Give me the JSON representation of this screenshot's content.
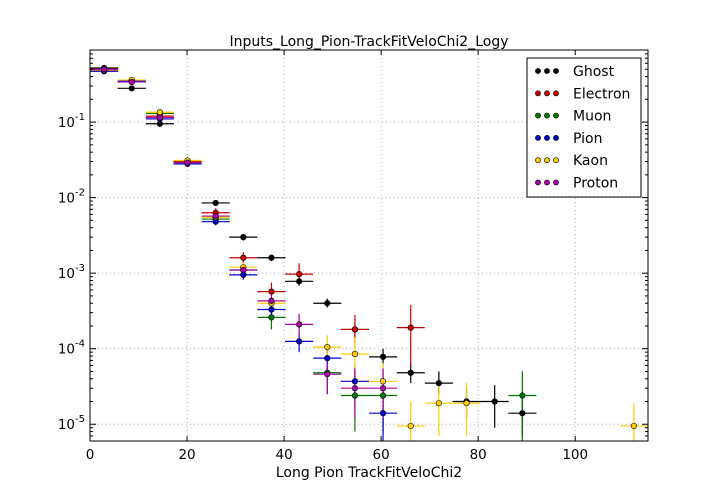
{
  "chart_data": {
    "type": "scatter",
    "title": "Inputs_Long_Pion-TrackFitVeloChi2_Logy",
    "xlabel": "Long Pion TrackFitVeloChi2",
    "ylabel": "",
    "xscale": "linear",
    "yscale": "log",
    "xlim": [
      0,
      115
    ],
    "ylim": [
      6e-06,
      0.9
    ],
    "grid": true,
    "legend_position": "top-right",
    "x_ticks": [
      0,
      20,
      40,
      60,
      80,
      100
    ],
    "x_tick_labels": [
      "0",
      "20",
      "40",
      "60",
      "80",
      "100"
    ],
    "y_ticks": [
      1e-05,
      0.0001,
      0.001,
      0.01,
      0.1
    ],
    "y_tick_labels": [
      {
        "base": "10",
        "exp": "-5"
      },
      {
        "base": "10",
        "exp": "-4"
      },
      {
        "base": "10",
        "exp": "-3"
      },
      {
        "base": "10",
        "exp": "-2"
      },
      {
        "base": "10",
        "exp": "-1"
      }
    ],
    "bin_half_width": 2.9,
    "series": [
      {
        "name": "Ghost",
        "color": "#000000",
        "points": [
          {
            "x": 2.9,
            "y": 0.52,
            "lo": 0.47,
            "hi": 0.57
          },
          {
            "x": 8.6,
            "y": 0.28,
            "lo": 0.26,
            "hi": 0.3
          },
          {
            "x": 14.4,
            "y": 0.095,
            "lo": 0.088,
            "hi": 0.102
          },
          {
            "x": 20.1,
            "y": 0.03,
            "lo": 0.028,
            "hi": 0.032
          },
          {
            "x": 25.9,
            "y": 0.0085,
            "lo": 0.0078,
            "hi": 0.0093
          },
          {
            "x": 31.6,
            "y": 0.003,
            "lo": 0.0027,
            "hi": 0.0033
          },
          {
            "x": 37.4,
            "y": 0.0016,
            "lo": 0.00145,
            "hi": 0.00175
          },
          {
            "x": 43.1,
            "y": 0.00078,
            "lo": 0.00068,
            "hi": 0.0009
          },
          {
            "x": 48.9,
            "y": 0.0004,
            "lo": 0.00035,
            "hi": 0.00046
          },
          {
            "x": 54.6,
            "y": 0.00018,
            "lo": 0.00015,
            "hi": 0.00022
          },
          {
            "x": 60.4,
            "y": 7.8e-05,
            "lo": 6e-05,
            "hi": 0.0001
          },
          {
            "x": 66.1,
            "y": 4.8e-05,
            "lo": 3.5e-05,
            "hi": 6.5e-05
          },
          {
            "x": 71.9,
            "y": 3.5e-05,
            "lo": 2.5e-05,
            "hi": 5e-05
          },
          {
            "x": 77.6,
            "y": 2e-05,
            "lo": 1.2e-05,
            "hi": 3e-05
          },
          {
            "x": 83.4,
            "y": 2e-05,
            "lo": 9e-06,
            "hi": 3.3e-05
          },
          {
            "x": 89.1,
            "y": 1.4e-05,
            "lo": 7e-06,
            "hi": 2.2e-05
          }
        ]
      },
      {
        "name": "Electron",
        "color": "#cc0000",
        "points": [
          {
            "x": 2.9,
            "y": 0.48,
            "lo": 0.45,
            "hi": 0.51
          },
          {
            "x": 8.6,
            "y": 0.34,
            "lo": 0.32,
            "hi": 0.36
          },
          {
            "x": 14.4,
            "y": 0.12,
            "lo": 0.11,
            "hi": 0.13
          },
          {
            "x": 20.1,
            "y": 0.03,
            "lo": 0.028,
            "hi": 0.032
          },
          {
            "x": 25.9,
            "y": 0.0063,
            "lo": 0.0055,
            "hi": 0.0072
          },
          {
            "x": 31.6,
            "y": 0.0016,
            "lo": 0.0013,
            "hi": 0.0019
          },
          {
            "x": 37.4,
            "y": 0.00057,
            "lo": 0.00042,
            "hi": 0.00075
          },
          {
            "x": 43.1,
            "y": 0.00097,
            "lo": 0.00072,
            "hi": 0.00135
          },
          {
            "x": 54.6,
            "y": 0.00018,
            "lo": 0.0001,
            "hi": 0.00028
          },
          {
            "x": 66.1,
            "y": 0.00019,
            "lo": 6e-05,
            "hi": 0.00038
          }
        ]
      },
      {
        "name": "Muon",
        "color": "#007700",
        "points": [
          {
            "x": 2.9,
            "y": 0.5,
            "lo": 0.46,
            "hi": 0.54
          },
          {
            "x": 8.6,
            "y": 0.35,
            "lo": 0.33,
            "hi": 0.37
          },
          {
            "x": 14.4,
            "y": 0.13,
            "lo": 0.12,
            "hi": 0.14
          },
          {
            "x": 20.1,
            "y": 0.029,
            "lo": 0.027,
            "hi": 0.031
          },
          {
            "x": 25.9,
            "y": 0.0052,
            "lo": 0.0046,
            "hi": 0.0058
          },
          {
            "x": 31.6,
            "y": 0.0011,
            "lo": 0.0009,
            "hi": 0.0013
          },
          {
            "x": 37.4,
            "y": 0.00026,
            "lo": 0.00018,
            "hi": 0.00036
          },
          {
            "x": 48.9,
            "y": 4.8e-05,
            "lo": 2.5e-05,
            "hi": 8e-05
          },
          {
            "x": 54.6,
            "y": 2.4e-05,
            "lo": 8e-06,
            "hi": 5e-05
          },
          {
            "x": 60.4,
            "y": 2.4e-05,
            "lo": 8e-06,
            "hi": 5e-05
          },
          {
            "x": 89.1,
            "y": 2.4e-05,
            "lo": 6e-06,
            "hi": 5e-05
          }
        ]
      },
      {
        "name": "Pion",
        "color": "#0000cc",
        "points": [
          {
            "x": 2.9,
            "y": 0.47,
            "lo": 0.44,
            "hi": 0.5
          },
          {
            "x": 8.6,
            "y": 0.35,
            "lo": 0.33,
            "hi": 0.37
          },
          {
            "x": 14.4,
            "y": 0.11,
            "lo": 0.102,
            "hi": 0.118
          },
          {
            "x": 20.1,
            "y": 0.028,
            "lo": 0.026,
            "hi": 0.03
          },
          {
            "x": 25.9,
            "y": 0.0048,
            "lo": 0.0043,
            "hi": 0.0054
          },
          {
            "x": 31.6,
            "y": 0.00095,
            "lo": 0.00082,
            "hi": 0.0011
          },
          {
            "x": 37.4,
            "y": 0.00033,
            "lo": 0.00026,
            "hi": 0.00042
          },
          {
            "x": 43.1,
            "y": 0.000125,
            "lo": 9e-05,
            "hi": 0.00016
          },
          {
            "x": 48.9,
            "y": 7.5e-05,
            "lo": 5e-05,
            "hi": 0.000105
          },
          {
            "x": 54.6,
            "y": 3.7e-05,
            "lo": 2e-05,
            "hi": 6e-05
          },
          {
            "x": 60.4,
            "y": 1.4e-05,
            "lo": 6e-06,
            "hi": 2.8e-05
          }
        ]
      },
      {
        "name": "Kaon",
        "color": "#ffcc00",
        "points": [
          {
            "x": 2.9,
            "y": 0.49,
            "lo": 0.46,
            "hi": 0.52
          },
          {
            "x": 8.6,
            "y": 0.36,
            "lo": 0.34,
            "hi": 0.38
          },
          {
            "x": 14.4,
            "y": 0.135,
            "lo": 0.125,
            "hi": 0.145
          },
          {
            "x": 20.1,
            "y": 0.031,
            "lo": 0.029,
            "hi": 0.033
          },
          {
            "x": 25.9,
            "y": 0.0055,
            "lo": 0.0049,
            "hi": 0.0062
          },
          {
            "x": 31.6,
            "y": 0.0012,
            "lo": 0.001,
            "hi": 0.0014
          },
          {
            "x": 37.4,
            "y": 0.0004,
            "lo": 0.00031,
            "hi": 0.0005
          },
          {
            "x": 48.9,
            "y": 0.000105,
            "lo": 7e-05,
            "hi": 0.00015
          },
          {
            "x": 54.6,
            "y": 8.5e-05,
            "lo": 4.5e-05,
            "hi": 0.00014
          },
          {
            "x": 60.4,
            "y": 3.7e-05,
            "lo": 1.5e-05,
            "hi": 6.5e-05
          },
          {
            "x": 66.1,
            "y": 9.5e-06,
            "lo": 4e-06,
            "hi": 2e-05
          },
          {
            "x": 71.9,
            "y": 1.9e-05,
            "lo": 7e-06,
            "hi": 3.5e-05
          },
          {
            "x": 77.6,
            "y": 1.9e-05,
            "lo": 7e-06,
            "hi": 3.5e-05
          },
          {
            "x": 112.1,
            "y": 9.5e-06,
            "lo": 4e-06,
            "hi": 1.9e-05
          }
        ]
      },
      {
        "name": "Proton",
        "color": "#aa00aa",
        "points": [
          {
            "x": 2.9,
            "y": 0.5,
            "lo": 0.47,
            "hi": 0.53
          },
          {
            "x": 8.6,
            "y": 0.34,
            "lo": 0.32,
            "hi": 0.36
          },
          {
            "x": 14.4,
            "y": 0.115,
            "lo": 0.107,
            "hi": 0.123
          },
          {
            "x": 20.1,
            "y": 0.029,
            "lo": 0.027,
            "hi": 0.031
          },
          {
            "x": 25.9,
            "y": 0.0057,
            "lo": 0.0051,
            "hi": 0.0064
          },
          {
            "x": 31.6,
            "y": 0.0011,
            "lo": 0.00095,
            "hi": 0.0013
          },
          {
            "x": 37.4,
            "y": 0.00043,
            "lo": 0.00034,
            "hi": 0.00055
          },
          {
            "x": 43.1,
            "y": 0.00021,
            "lo": 0.00015,
            "hi": 0.00029
          },
          {
            "x": 48.9,
            "y": 4.6e-05,
            "lo": 2.5e-05,
            "hi": 8e-05
          },
          {
            "x": 54.6,
            "y": 3e-05,
            "lo": 1.2e-05,
            "hi": 5.5e-05
          },
          {
            "x": 60.4,
            "y": 3e-05,
            "lo": 1.2e-05,
            "hi": 5.5e-05
          }
        ]
      }
    ]
  }
}
